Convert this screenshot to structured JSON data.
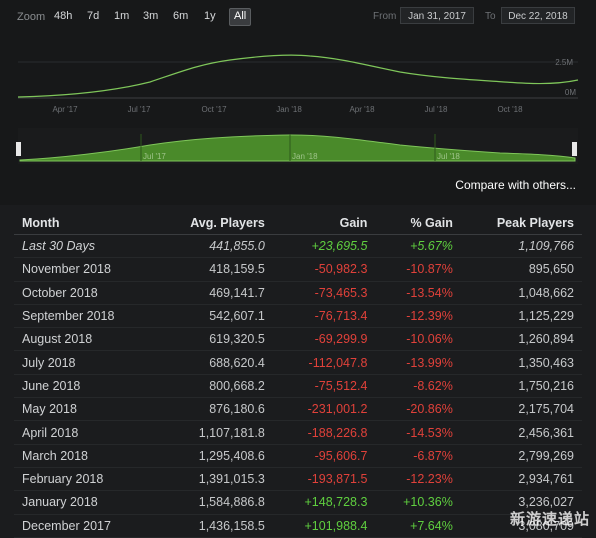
{
  "zoom": {
    "label": "Zoom",
    "buttons": [
      "48h",
      "7d",
      "1m",
      "3m",
      "6m",
      "1y",
      "All"
    ],
    "active": "All"
  },
  "date_range": {
    "from_label": "From",
    "from_value": "Jan 31, 2017",
    "to_label": "To",
    "to_value": "Dec 22, 2018"
  },
  "chart": {
    "y_labels": [
      "2.5M",
      "0M"
    ],
    "x_labels": [
      "Apr '17",
      "Jul '17",
      "Oct '17",
      "Jan '18",
      "Apr '18",
      "Jul '18",
      "Oct '18"
    ],
    "navigator_labels": [
      "Jul '17",
      "Jan '18",
      "Jul '18"
    ],
    "line_color": "#7fc65a",
    "area_color": "#4a8a2a"
  },
  "compare_link": "Compare with others...",
  "table": {
    "headers": [
      "Month",
      "Avg. Players",
      "Gain",
      "% Gain",
      "Peak Players"
    ],
    "rows": [
      {
        "month": "Last 30 Days",
        "avg": "441,855.0",
        "gain": "+23,695.5",
        "pct": "+5.67%",
        "peak": "1,109,766",
        "sign": "pos"
      },
      {
        "month": "November 2018",
        "avg": "418,159.5",
        "gain": "-50,982.3",
        "pct": "-10.87%",
        "peak": "895,650",
        "sign": "neg"
      },
      {
        "month": "October 2018",
        "avg": "469,141.7",
        "gain": "-73,465.3",
        "pct": "-13.54%",
        "peak": "1,048,662",
        "sign": "neg"
      },
      {
        "month": "September 2018",
        "avg": "542,607.1",
        "gain": "-76,713.4",
        "pct": "-12.39%",
        "peak": "1,125,229",
        "sign": "neg"
      },
      {
        "month": "August 2018",
        "avg": "619,320.5",
        "gain": "-69,299.9",
        "pct": "-10.06%",
        "peak": "1,260,894",
        "sign": "neg"
      },
      {
        "month": "July 2018",
        "avg": "688,620.4",
        "gain": "-112,047.8",
        "pct": "-13.99%",
        "peak": "1,350,463",
        "sign": "neg"
      },
      {
        "month": "June 2018",
        "avg": "800,668.2",
        "gain": "-75,512.4",
        "pct": "-8.62%",
        "peak": "1,750,216",
        "sign": "neg"
      },
      {
        "month": "May 2018",
        "avg": "876,180.6",
        "gain": "-231,001.2",
        "pct": "-20.86%",
        "peak": "2,175,704",
        "sign": "neg"
      },
      {
        "month": "April 2018",
        "avg": "1,107,181.8",
        "gain": "-188,226.8",
        "pct": "-14.53%",
        "peak": "2,456,361",
        "sign": "neg"
      },
      {
        "month": "March 2018",
        "avg": "1,295,408.6",
        "gain": "-95,606.7",
        "pct": "-6.87%",
        "peak": "2,799,269",
        "sign": "neg"
      },
      {
        "month": "February 2018",
        "avg": "1,391,015.3",
        "gain": "-193,871.5",
        "pct": "-12.23%",
        "peak": "2,934,761",
        "sign": "neg"
      },
      {
        "month": "January 2018",
        "avg": "1,584,886.8",
        "gain": "+148,728.3",
        "pct": "+10.36%",
        "peak": "3,236,027",
        "sign": "pos"
      },
      {
        "month": "December 2017",
        "avg": "1,436,158.5",
        "gain": "+101,988.4",
        "pct": "+7.64%",
        "peak": "3,080,709",
        "sign": "pos"
      }
    ]
  },
  "watermark": "新游速递站"
}
